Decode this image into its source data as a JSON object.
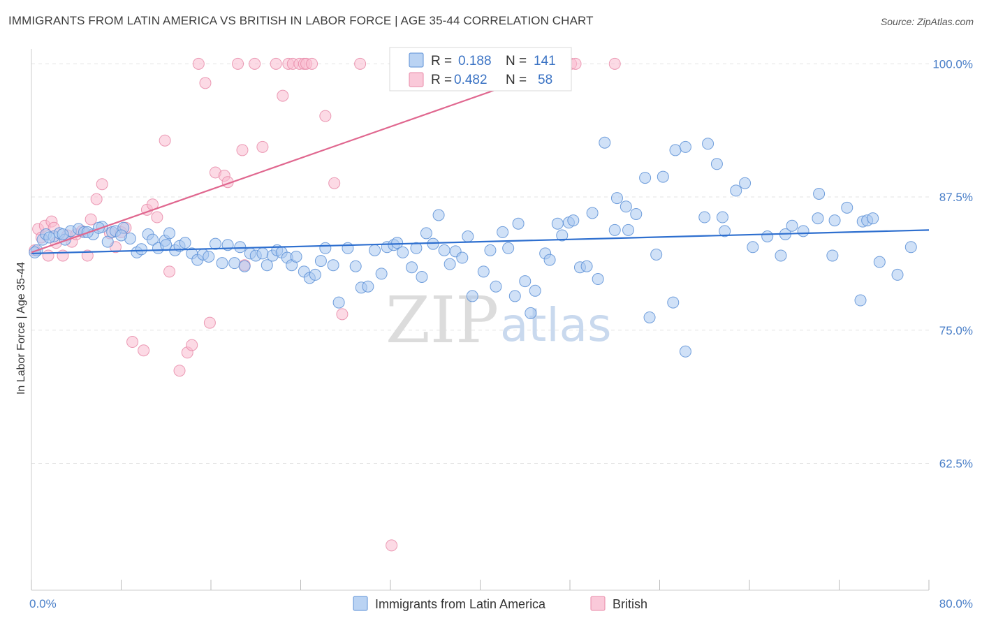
{
  "header": {
    "title": "IMMIGRANTS FROM LATIN AMERICA VS BRITISH IN LABOR FORCE | AGE 35-44 CORRELATION CHART",
    "source": "Source: ZipAtlas.com"
  },
  "watermark": {
    "zip": "ZIP",
    "atlas": "atlas"
  },
  "legend": {
    "r_label": "R =",
    "n_label": "N =",
    "rows": [
      {
        "r": "0.188",
        "n": "141",
        "fill": "#a9c8f0",
        "stroke": "#5b8fd6"
      },
      {
        "r": "0.482",
        "n": "58",
        "fill": "#f9bcd0",
        "stroke": "#e88aa8"
      }
    ]
  },
  "colors": {
    "blue_fill": "#a9c8f0",
    "blue_stroke": "#5b8fd6",
    "blue_line": "#2e6fcf",
    "pink_fill": "#f9bcd0",
    "pink_stroke": "#e88aa8",
    "pink_line": "#e0678f",
    "grid": "#e3e3e3",
    "axis_label": "#4a7fc8"
  },
  "chart_data": {
    "type": "scatter",
    "title": "IMMIGRANTS FROM LATIN AMERICA VS BRITISH IN LABOR FORCE | AGE 35-44 CORRELATION CHART",
    "xlabel": "",
    "ylabel": "In Labor Force | Age 35-44",
    "xlim": [
      0,
      80
    ],
    "ylim": [
      50.6,
      101.4
    ],
    "x_tick_labels": [
      "0.0%",
      "80.0%"
    ],
    "y_ticks": [
      100.0,
      87.5,
      75.0,
      62.5
    ],
    "y_tick_labels": [
      "100.0%",
      "87.5%",
      "75.0%",
      "62.5%"
    ],
    "grid": true,
    "legend_position": "top-center",
    "series": [
      {
        "name": "Immigrants from Latin America",
        "color": "#a9c8f0",
        "trend": {
          "x0": 0,
          "y0": 82.2,
          "x1": 80,
          "y1": 84.4
        },
        "points": [
          [
            0.5,
            82.5
          ],
          [
            1.0,
            83.5
          ],
          [
            1.3,
            84.0
          ],
          [
            2.0,
            83.8
          ],
          [
            2.5,
            84.1
          ],
          [
            3.0,
            83.5
          ],
          [
            3.5,
            84.3
          ],
          [
            4.2,
            84.5
          ],
          [
            4.7,
            84.2
          ],
          [
            5.5,
            84.0
          ],
          [
            6.3,
            84.7
          ],
          [
            6.8,
            83.3
          ],
          [
            7.2,
            84.2
          ],
          [
            7.5,
            84.3
          ],
          [
            8.2,
            84.6
          ],
          [
            8.8,
            83.6
          ],
          [
            9.4,
            82.3
          ],
          [
            9.8,
            82.6
          ],
          [
            10.4,
            84.0
          ],
          [
            10.8,
            83.5
          ],
          [
            11.3,
            82.7
          ],
          [
            11.9,
            83.4
          ],
          [
            12.3,
            84.1
          ],
          [
            12.8,
            82.5
          ],
          [
            13.2,
            82.9
          ],
          [
            13.7,
            83.2
          ],
          [
            14.3,
            82.2
          ],
          [
            14.8,
            81.6
          ],
          [
            15.3,
            82.1
          ],
          [
            15.8,
            81.9
          ],
          [
            16.4,
            83.1
          ],
          [
            17.0,
            81.3
          ],
          [
            17.5,
            83.0
          ],
          [
            18.1,
            81.3
          ],
          [
            18.6,
            82.8
          ],
          [
            19.0,
            81.0
          ],
          [
            19.5,
            82.2
          ],
          [
            20.0,
            82.0
          ],
          [
            20.6,
            82.2
          ],
          [
            21.0,
            81.1
          ],
          [
            21.5,
            82.0
          ],
          [
            21.9,
            82.5
          ],
          [
            22.3,
            82.3
          ],
          [
            22.8,
            81.8
          ],
          [
            23.2,
            81.1
          ],
          [
            23.6,
            81.9
          ],
          [
            24.3,
            80.5
          ],
          [
            24.8,
            79.9
          ],
          [
            25.3,
            80.2
          ],
          [
            25.8,
            81.5
          ],
          [
            26.2,
            82.7
          ],
          [
            26.9,
            81.1
          ],
          [
            27.4,
            77.6
          ],
          [
            28.2,
            82.7
          ],
          [
            28.9,
            81.0
          ],
          [
            29.4,
            79.0
          ],
          [
            30.0,
            79.1
          ],
          [
            30.6,
            82.5
          ],
          [
            31.2,
            80.3
          ],
          [
            31.7,
            82.8
          ],
          [
            32.3,
            83.0
          ],
          [
            32.6,
            83.2
          ],
          [
            33.1,
            82.3
          ],
          [
            33.9,
            80.9
          ],
          [
            34.3,
            82.7
          ],
          [
            34.8,
            80.0
          ],
          [
            35.2,
            84.1
          ],
          [
            35.8,
            83.1
          ],
          [
            36.3,
            85.8
          ],
          [
            36.8,
            82.5
          ],
          [
            37.3,
            81.2
          ],
          [
            37.8,
            82.4
          ],
          [
            38.4,
            81.8
          ],
          [
            38.9,
            83.8
          ],
          [
            39.3,
            78.2
          ],
          [
            40.3,
            80.5
          ],
          [
            40.9,
            82.5
          ],
          [
            41.4,
            79.1
          ],
          [
            42.0,
            84.2
          ],
          [
            42.5,
            82.7
          ],
          [
            43.1,
            78.2
          ],
          [
            43.4,
            85.0
          ],
          [
            44.0,
            79.6
          ],
          [
            44.5,
            76.6
          ],
          [
            44.9,
            78.7
          ],
          [
            45.8,
            82.2
          ],
          [
            46.2,
            81.6
          ],
          [
            46.9,
            85.0
          ],
          [
            47.3,
            83.9
          ],
          [
            47.9,
            85.1
          ],
          [
            48.3,
            85.3
          ],
          [
            48.9,
            80.9
          ],
          [
            49.5,
            81.0
          ],
          [
            50.0,
            86.0
          ],
          [
            50.5,
            79.8
          ],
          [
            51.1,
            92.6
          ],
          [
            52.0,
            84.4
          ],
          [
            52.2,
            87.4
          ],
          [
            53.0,
            86.6
          ],
          [
            53.2,
            84.4
          ],
          [
            53.9,
            85.9
          ],
          [
            54.7,
            89.3
          ],
          [
            55.1,
            76.2
          ],
          [
            55.7,
            82.1
          ],
          [
            56.3,
            89.4
          ],
          [
            57.2,
            77.6
          ],
          [
            57.4,
            91.9
          ],
          [
            58.3,
            92.2
          ],
          [
            58.3,
            73.0
          ],
          [
            60.0,
            85.6
          ],
          [
            60.3,
            92.5
          ],
          [
            61.1,
            90.6
          ],
          [
            61.6,
            85.6
          ],
          [
            61.8,
            84.3
          ],
          [
            62.8,
            88.1
          ],
          [
            63.6,
            88.8
          ],
          [
            64.3,
            82.8
          ],
          [
            65.6,
            83.8
          ],
          [
            66.8,
            82.0
          ],
          [
            67.2,
            84.0
          ],
          [
            67.8,
            84.8
          ],
          [
            68.8,
            84.3
          ],
          [
            70.1,
            85.5
          ],
          [
            70.2,
            87.8
          ],
          [
            71.4,
            82.0
          ],
          [
            71.6,
            85.3
          ],
          [
            72.7,
            86.5
          ],
          [
            73.9,
            77.8
          ],
          [
            74.1,
            85.2
          ],
          [
            74.5,
            85.3
          ],
          [
            75.0,
            85.5
          ],
          [
            75.6,
            81.4
          ],
          [
            77.2,
            80.2
          ],
          [
            78.4,
            82.8
          ],
          [
            0.3,
            82.3
          ],
          [
            1.6,
            83.7
          ],
          [
            2.8,
            84.0
          ],
          [
            5.0,
            84.2
          ],
          [
            6.0,
            84.6
          ],
          [
            8.0,
            83.9
          ],
          [
            12.0,
            83.0
          ]
        ]
      },
      {
        "name": "British",
        "color": "#f9bcd0",
        "trend": {
          "x0": 0,
          "y0": 82.3,
          "x1": 48,
          "y1": 100.0
        },
        "points": [
          [
            0.3,
            82.5
          ],
          [
            0.6,
            84.5
          ],
          [
            1.2,
            84.8
          ],
          [
            1.8,
            85.2
          ],
          [
            2.2,
            83.2
          ],
          [
            2.8,
            82.0
          ],
          [
            3.2,
            83.9
          ],
          [
            3.6,
            83.3
          ],
          [
            4.0,
            84.0
          ],
          [
            4.5,
            84.3
          ],
          [
            5.0,
            82.0
          ],
          [
            5.3,
            85.4
          ],
          [
            5.8,
            87.3
          ],
          [
            6.3,
            88.7
          ],
          [
            7.0,
            84.1
          ],
          [
            7.5,
            82.8
          ],
          [
            8.0,
            84.2
          ],
          [
            8.4,
            84.6
          ],
          [
            9.0,
            73.9
          ],
          [
            10.0,
            73.1
          ],
          [
            10.3,
            86.3
          ],
          [
            10.8,
            86.8
          ],
          [
            11.2,
            85.6
          ],
          [
            11.9,
            92.8
          ],
          [
            12.3,
            80.5
          ],
          [
            13.2,
            71.2
          ],
          [
            13.9,
            72.9
          ],
          [
            14.3,
            73.6
          ],
          [
            14.9,
            100.0
          ],
          [
            15.5,
            98.2
          ],
          [
            15.9,
            75.7
          ],
          [
            16.4,
            89.8
          ],
          [
            17.2,
            89.5
          ],
          [
            17.5,
            88.9
          ],
          [
            18.4,
            100.0
          ],
          [
            18.8,
            91.9
          ],
          [
            19.0,
            81.1
          ],
          [
            19.9,
            100.0
          ],
          [
            20.6,
            92.2
          ],
          [
            21.8,
            100.0
          ],
          [
            22.4,
            97.0
          ],
          [
            22.9,
            100.0
          ],
          [
            23.3,
            100.0
          ],
          [
            23.9,
            100.0
          ],
          [
            24.3,
            100.0
          ],
          [
            24.5,
            100.0
          ],
          [
            25.0,
            100.0
          ],
          [
            26.2,
            95.1
          ],
          [
            27.0,
            88.8
          ],
          [
            27.7,
            76.5
          ],
          [
            29.3,
            100.0
          ],
          [
            32.1,
            54.8
          ],
          [
            48.1,
            100.0
          ],
          [
            48.5,
            100.0
          ],
          [
            52.0,
            100.0
          ],
          [
            2.0,
            84.6
          ],
          [
            0.9,
            83.7
          ],
          [
            1.5,
            82.0
          ]
        ]
      }
    ]
  },
  "bottom_legend": [
    {
      "label": "Immigrants from Latin America",
      "fill": "#a9c8f0",
      "stroke": "#5b8fd6"
    },
    {
      "label": "British",
      "fill": "#f9bcd0",
      "stroke": "#e88aa8"
    }
  ]
}
